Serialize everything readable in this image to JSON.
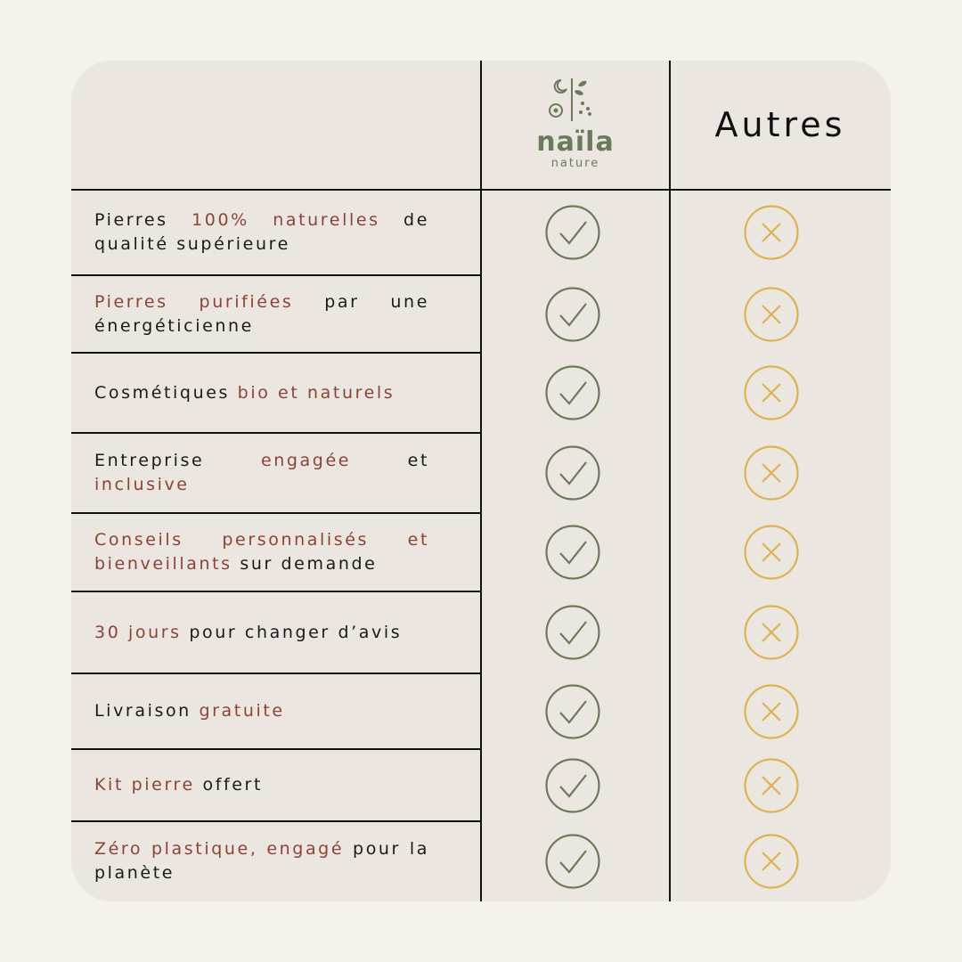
{
  "header": {
    "brand": "naïla",
    "brand_subtitle": "nature",
    "others": "Autres"
  },
  "rows": [
    {
      "segments": [
        {
          "text": "Pierres ",
          "highlight": false
        },
        {
          "text": "100% naturelles",
          "highlight": true
        },
        {
          "text": " de qualité supérieure",
          "highlight": false
        }
      ]
    },
    {
      "segments": [
        {
          "text": "Pierres purifiées",
          "highlight": true
        },
        {
          "text": " par une énergéticienne",
          "highlight": false
        }
      ]
    },
    {
      "segments": [
        {
          "text": "Cosmétiques ",
          "highlight": false
        },
        {
          "text": "bio et naturels",
          "highlight": true
        }
      ]
    },
    {
      "segments": [
        {
          "text": "Entreprise ",
          "highlight": false
        },
        {
          "text": "engagée",
          "highlight": true
        },
        {
          "text": " et ",
          "highlight": false
        },
        {
          "text": "inclusive",
          "highlight": true
        }
      ]
    },
    {
      "segments": [
        {
          "text": "Conseils personnalisés et bienveillants",
          "highlight": true
        },
        {
          "text": " sur demande",
          "highlight": false
        }
      ]
    },
    {
      "segments": [
        {
          "text": "30 jours",
          "highlight": true
        },
        {
          "text": " pour changer d’avis",
          "highlight": false
        }
      ]
    },
    {
      "segments": [
        {
          "text": "Livraison ",
          "highlight": false
        },
        {
          "text": "gratuite",
          "highlight": true
        }
      ]
    },
    {
      "segments": [
        {
          "text": "Kit pierre",
          "highlight": true
        },
        {
          "text": " offert",
          "highlight": false
        }
      ]
    },
    {
      "segments": [
        {
          "text": "Zéro plastique, engagé",
          "highlight": true
        },
        {
          "text": " pour la planète",
          "highlight": false
        }
      ]
    }
  ]
}
